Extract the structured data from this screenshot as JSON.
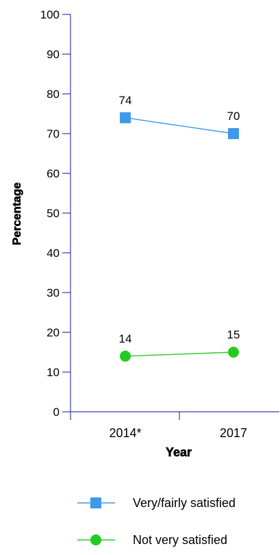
{
  "chart_data": {
    "type": "line",
    "categories": [
      "2014*",
      "2017"
    ],
    "series": [
      {
        "name": "Very/fairly satisfied",
        "values": [
          74,
          70
        ],
        "color": "#3d9aea",
        "marker": "square"
      },
      {
        "name": "Not very satisfied",
        "values": [
          14,
          15
        ],
        "color": "#22cc22",
        "marker": "circle"
      }
    ],
    "xlabel": "Year",
    "ylabel": "Percentage",
    "ylim": [
      0,
      100
    ],
    "yticks": [
      0,
      10,
      20,
      30,
      40,
      50,
      60,
      70,
      80,
      90,
      100
    ],
    "grid": false,
    "legend_position": "bottom"
  }
}
